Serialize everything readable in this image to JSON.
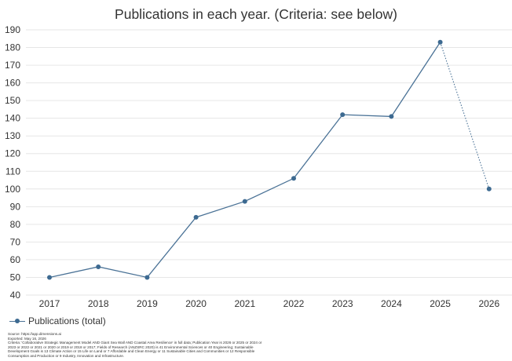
{
  "chart_data": {
    "type": "line",
    "title": "Publications in each year. (Criteria: see below)",
    "xlabel": "",
    "ylabel": "",
    "categories": [
      "2017",
      "2018",
      "2019",
      "2020",
      "2021",
      "2022",
      "2023",
      "2024",
      "2025",
      "2026"
    ],
    "series": [
      {
        "name": "Publications (total)",
        "values": [
          50,
          56,
          50,
          84,
          93,
          106,
          142,
          141,
          183,
          100
        ]
      }
    ],
    "dotted_last_segment": true,
    "ylim": [
      40,
      190
    ],
    "yticks": [
      40,
      50,
      60,
      70,
      80,
      90,
      100,
      110,
      120,
      130,
      140,
      150,
      160,
      170,
      180,
      190
    ],
    "grid": true,
    "legend": "bottom-left",
    "colors": {
      "line": "#4a7296",
      "marker": "#3d6a91",
      "grid": "#e6e6e6"
    }
  },
  "notes": {
    "source": "Source: https://app.dimensions.ai",
    "exported": "Exported: May 16, 2026",
    "criteria": "Criteria: 'Collaborative Strategic Management Model AND Giant Sea Wall AND Coastal Area Resilience' in full data; Publication Year is 2026 or 2025 or 2024 or 2023 or 2022 or 2021 or 2020 or 2019 or 2018 or 2017; Fields of Research (ANZSRC 2020) is 41 Environmental Sciences or 40 Engineering; Sustainable Development Goals is 13 Climate Action or 15 Life on Land or 7 Affordable and Clean Energy or 11 Sustainable Cities and Communities or 12 Responsible Consumption and Production or 9 Industry, Innovation and Infrastructure."
  }
}
